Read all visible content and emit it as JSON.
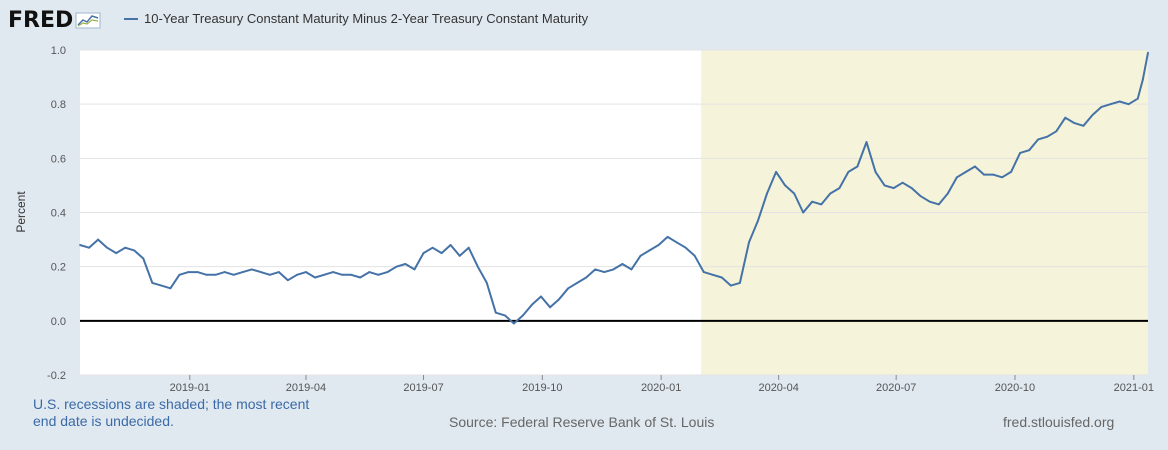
{
  "brand": {
    "logo_text": "FRED"
  },
  "chart_data": {
    "type": "line",
    "title": "10-Year Treasury Constant Maturity Minus 2-Year Treasury Constant Maturity",
    "ylabel": "Percent",
    "xlabel": "",
    "ylim": [
      -0.2,
      1.0
    ],
    "yticks": [
      "1.0",
      "0.8",
      "0.6",
      "0.4",
      "0.2",
      "0.0",
      "-0.2"
    ],
    "xticks": [
      "2019-01",
      "2019-04",
      "2019-07",
      "2019-10",
      "2020-01",
      "2020-04",
      "2020-07",
      "2020-10",
      "2021-01"
    ],
    "x_range": [
      "2018-10-08",
      "2021-01-12"
    ],
    "grid": "horizontal",
    "zero_line": true,
    "recession_shading": {
      "start": "2020-02-01",
      "end": "2021-01-12",
      "color": "#f5f4da"
    },
    "series": [
      {
        "name": "10-Year Treasury Constant Maturity Minus 2-Year Treasury Constant Maturity",
        "color": "#4572a7",
        "points": [
          [
            "2018-10-08",
            0.28
          ],
          [
            "2018-10-15",
            0.27
          ],
          [
            "2018-10-22",
            0.3
          ],
          [
            "2018-10-29",
            0.27
          ],
          [
            "2018-11-05",
            0.25
          ],
          [
            "2018-11-12",
            0.27
          ],
          [
            "2018-11-19",
            0.26
          ],
          [
            "2018-11-26",
            0.23
          ],
          [
            "2018-12-03",
            0.14
          ],
          [
            "2018-12-10",
            0.13
          ],
          [
            "2018-12-17",
            0.12
          ],
          [
            "2018-12-24",
            0.17
          ],
          [
            "2018-12-31",
            0.18
          ],
          [
            "2019-01-07",
            0.18
          ],
          [
            "2019-01-14",
            0.17
          ],
          [
            "2019-01-21",
            0.17
          ],
          [
            "2019-01-28",
            0.18
          ],
          [
            "2019-02-04",
            0.17
          ],
          [
            "2019-02-11",
            0.18
          ],
          [
            "2019-02-18",
            0.19
          ],
          [
            "2019-02-25",
            0.18
          ],
          [
            "2019-03-04",
            0.17
          ],
          [
            "2019-03-11",
            0.18
          ],
          [
            "2019-03-18",
            0.15
          ],
          [
            "2019-03-25",
            0.17
          ],
          [
            "2019-04-01",
            0.18
          ],
          [
            "2019-04-08",
            0.16
          ],
          [
            "2019-04-15",
            0.17
          ],
          [
            "2019-04-22",
            0.18
          ],
          [
            "2019-04-29",
            0.17
          ],
          [
            "2019-05-06",
            0.17
          ],
          [
            "2019-05-13",
            0.16
          ],
          [
            "2019-05-20",
            0.18
          ],
          [
            "2019-05-27",
            0.17
          ],
          [
            "2019-06-03",
            0.18
          ],
          [
            "2019-06-10",
            0.2
          ],
          [
            "2019-06-17",
            0.21
          ],
          [
            "2019-06-24",
            0.19
          ],
          [
            "2019-07-01",
            0.25
          ],
          [
            "2019-07-08",
            0.27
          ],
          [
            "2019-07-15",
            0.25
          ],
          [
            "2019-07-22",
            0.28
          ],
          [
            "2019-07-29",
            0.24
          ],
          [
            "2019-08-05",
            0.27
          ],
          [
            "2019-08-12",
            0.2
          ],
          [
            "2019-08-19",
            0.14
          ],
          [
            "2019-08-26",
            0.03
          ],
          [
            "2019-09-02",
            0.02
          ],
          [
            "2019-09-09",
            -0.01
          ],
          [
            "2019-09-16",
            0.02
          ],
          [
            "2019-09-23",
            0.06
          ],
          [
            "2019-09-30",
            0.09
          ],
          [
            "2019-10-07",
            0.05
          ],
          [
            "2019-10-14",
            0.08
          ],
          [
            "2019-10-21",
            0.12
          ],
          [
            "2019-10-28",
            0.14
          ],
          [
            "2019-11-04",
            0.16
          ],
          [
            "2019-11-11",
            0.19
          ],
          [
            "2019-11-18",
            0.18
          ],
          [
            "2019-11-25",
            0.19
          ],
          [
            "2019-12-02",
            0.21
          ],
          [
            "2019-12-09",
            0.19
          ],
          [
            "2019-12-16",
            0.24
          ],
          [
            "2019-12-23",
            0.26
          ],
          [
            "2019-12-30",
            0.28
          ],
          [
            "2020-01-06",
            0.31
          ],
          [
            "2020-01-13",
            0.29
          ],
          [
            "2020-01-20",
            0.27
          ],
          [
            "2020-01-27",
            0.24
          ],
          [
            "2020-02-03",
            0.18
          ],
          [
            "2020-02-10",
            0.17
          ],
          [
            "2020-02-17",
            0.16
          ],
          [
            "2020-02-24",
            0.13
          ],
          [
            "2020-03-02",
            0.14
          ],
          [
            "2020-03-09",
            0.29
          ],
          [
            "2020-03-16",
            0.37
          ],
          [
            "2020-03-23",
            0.47
          ],
          [
            "2020-03-30",
            0.55
          ],
          [
            "2020-04-06",
            0.5
          ],
          [
            "2020-04-13",
            0.47
          ],
          [
            "2020-04-20",
            0.4
          ],
          [
            "2020-04-27",
            0.44
          ],
          [
            "2020-05-04",
            0.43
          ],
          [
            "2020-05-11",
            0.47
          ],
          [
            "2020-05-18",
            0.49
          ],
          [
            "2020-05-25",
            0.55
          ],
          [
            "2020-06-01",
            0.57
          ],
          [
            "2020-06-08",
            0.66
          ],
          [
            "2020-06-15",
            0.55
          ],
          [
            "2020-06-22",
            0.5
          ],
          [
            "2020-06-29",
            0.49
          ],
          [
            "2020-07-06",
            0.51
          ],
          [
            "2020-07-13",
            0.49
          ],
          [
            "2020-07-20",
            0.46
          ],
          [
            "2020-07-27",
            0.44
          ],
          [
            "2020-08-03",
            0.43
          ],
          [
            "2020-08-10",
            0.47
          ],
          [
            "2020-08-17",
            0.53
          ],
          [
            "2020-08-24",
            0.55
          ],
          [
            "2020-08-31",
            0.57
          ],
          [
            "2020-09-07",
            0.54
          ],
          [
            "2020-09-14",
            0.54
          ],
          [
            "2020-09-21",
            0.53
          ],
          [
            "2020-09-28",
            0.55
          ],
          [
            "2020-10-05",
            0.62
          ],
          [
            "2020-10-12",
            0.63
          ],
          [
            "2020-10-19",
            0.67
          ],
          [
            "2020-10-26",
            0.68
          ],
          [
            "2020-11-02",
            0.7
          ],
          [
            "2020-11-09",
            0.75
          ],
          [
            "2020-11-16",
            0.73
          ],
          [
            "2020-11-23",
            0.72
          ],
          [
            "2020-11-30",
            0.76
          ],
          [
            "2020-12-07",
            0.79
          ],
          [
            "2020-12-14",
            0.8
          ],
          [
            "2020-12-21",
            0.81
          ],
          [
            "2020-12-28",
            0.8
          ],
          [
            "2021-01-04",
            0.82
          ],
          [
            "2021-01-08",
            0.89
          ],
          [
            "2021-01-12",
            0.99
          ]
        ]
      }
    ]
  },
  "footer": {
    "note": "U.S. recessions are shaded; the most recent end date is undecided.",
    "source": "Source: Federal Reserve Bank of St. Louis",
    "url": "fred.stlouisfed.org"
  }
}
